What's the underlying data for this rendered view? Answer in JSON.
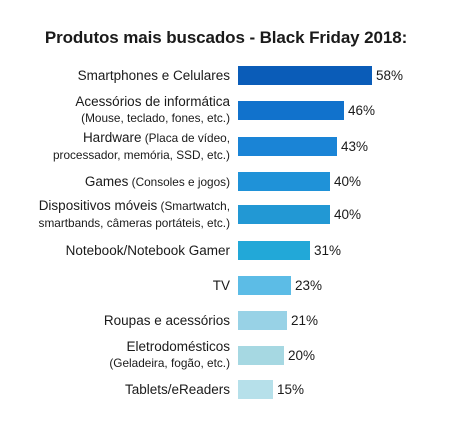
{
  "chart_data": {
    "type": "bar",
    "orientation": "horizontal",
    "title": "Produtos mais buscados - Black Friday 2018:",
    "xlabel": "",
    "ylabel": "",
    "xlim": [
      0,
      58
    ],
    "grid": false,
    "legend": "none",
    "value_suffix": "%",
    "categories": [
      {
        "line1": "Smartphones e Celulares",
        "note1": "",
        "line2": ""
      },
      {
        "line1": "Acessórios de informática",
        "note1": "",
        "line2": "(Mouse, teclado, fones, etc.)"
      },
      {
        "line1": "Hardware",
        "note1": " (Placa de vídeo,",
        "line2": "processador, memória, SSD, etc.)"
      },
      {
        "line1": "Games",
        "note1": " (Consoles e jogos)",
        "line2": ""
      },
      {
        "line1": "Dispositivos móveis",
        "note1": " (Smartwatch,",
        "line2": "smartbands, câmeras portáteis, etc.)"
      },
      {
        "line1": "Notebook/Notebook Gamer",
        "note1": "",
        "line2": ""
      },
      {
        "line1": "TV",
        "note1": "",
        "line2": ""
      },
      {
        "line1": "Roupas e acessórios",
        "note1": "",
        "line2": ""
      },
      {
        "line1": "Eletrodomésticos",
        "note1": "",
        "line2": "(Geladeira, fogão, etc.)"
      },
      {
        "line1": "Tablets/eReaders",
        "note1": "",
        "line2": ""
      }
    ],
    "values": [
      58,
      46,
      43,
      40,
      40,
      31,
      23,
      21,
      20,
      15
    ],
    "colors": [
      "#0a5cb8",
      "#1172cc",
      "#1a84d6",
      "#1f92d8",
      "#2298d4",
      "#22a8d8",
      "#5cbce6",
      "#98d2e6",
      "#a6d8e2",
      "#b6e0ea"
    ]
  }
}
